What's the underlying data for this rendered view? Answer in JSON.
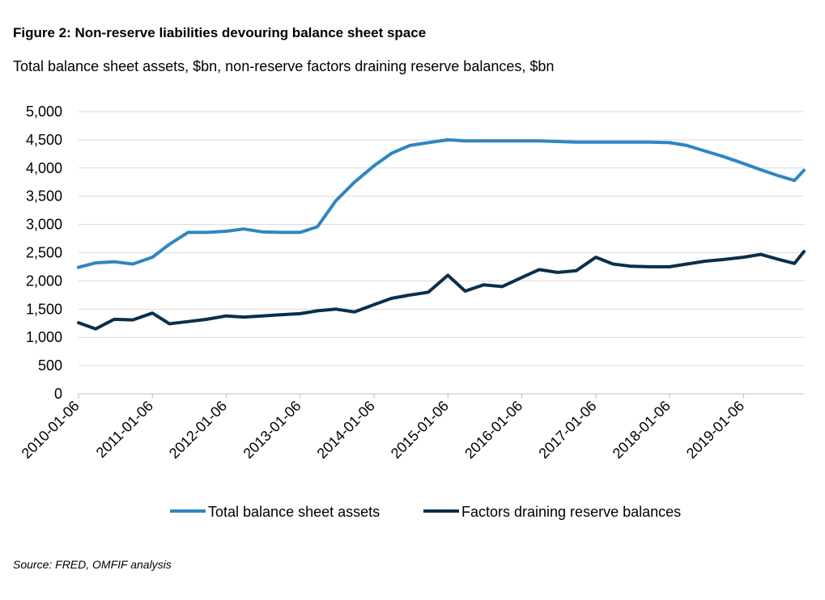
{
  "figure": {
    "title": "Figure 2: Non-reserve liabilities devouring balance sheet space",
    "subtitle": "Total balance sheet assets, $bn, non-reserve factors draining reserve balances, $bn",
    "source": "Source: FRED, OMFIF analysis"
  },
  "chart_data": {
    "type": "line",
    "title": "Figure 2: Non-reserve liabilities devouring balance sheet space",
    "xlabel": "",
    "ylabel": "",
    "ylim": [
      0,
      5000
    ],
    "y_ticks": [
      0,
      500,
      1000,
      1500,
      2000,
      2500,
      3000,
      3500,
      4000,
      4500,
      5000
    ],
    "y_tick_labels": [
      "0",
      "500",
      "1,000",
      "1,500",
      "2,000",
      "2,500",
      "3,000",
      "3,500",
      "4,000",
      "4,500",
      "5,000"
    ],
    "x_tick_labels": [
      "2010-01-06",
      "2011-01-06",
      "2012-01-06",
      "2013-01-06",
      "2014-01-06",
      "2015-01-06",
      "2016-01-06",
      "2017-01-06",
      "2018-01-06",
      "2019-01-06"
    ],
    "x_range": [
      "2010-01-06",
      "2019-11-01"
    ],
    "grid": "horizontal",
    "legend_position": "bottom",
    "x": [
      "2010-01-06",
      "2010-04-01",
      "2010-07-01",
      "2010-10-01",
      "2011-01-06",
      "2011-04-01",
      "2011-07-01",
      "2011-10-01",
      "2012-01-06",
      "2012-04-01",
      "2012-07-01",
      "2012-10-01",
      "2013-01-06",
      "2013-04-01",
      "2013-07-01",
      "2013-10-01",
      "2014-01-06",
      "2014-04-01",
      "2014-07-01",
      "2014-10-01",
      "2015-01-06",
      "2015-04-01",
      "2015-07-01",
      "2015-10-01",
      "2016-01-06",
      "2016-04-01",
      "2016-07-01",
      "2016-10-01",
      "2017-01-06",
      "2017-04-01",
      "2017-07-01",
      "2017-10-01",
      "2018-01-06",
      "2018-04-01",
      "2018-07-01",
      "2018-10-01",
      "2019-01-06",
      "2019-04-01",
      "2019-07-01",
      "2019-09-15",
      "2019-11-01"
    ],
    "series": [
      {
        "name": "Total balance sheet assets",
        "color": "#2E86C1",
        "values": [
          2240,
          2320,
          2340,
          2300,
          2420,
          2650,
          2860,
          2860,
          2880,
          2920,
          2870,
          2860,
          2860,
          2960,
          3420,
          3750,
          4040,
          4260,
          4400,
          4450,
          4500,
          4480,
          4480,
          4480,
          4480,
          4480,
          4470,
          4460,
          4460,
          4460,
          4460,
          4460,
          4450,
          4400,
          4300,
          4200,
          4080,
          3970,
          3860,
          3780,
          3960
        ]
      },
      {
        "name": "Factors draining reserve balances",
        "color": "#0B2F4A",
        "values": [
          1260,
          1150,
          1320,
          1310,
          1430,
          1240,
          1280,
          1320,
          1380,
          1360,
          1380,
          1400,
          1420,
          1470,
          1500,
          1450,
          1580,
          1690,
          1750,
          1800,
          2100,
          1820,
          1930,
          1900,
          2060,
          2200,
          2150,
          2180,
          2420,
          2300,
          2260,
          2250,
          2250,
          2300,
          2350,
          2380,
          2420,
          2470,
          2380,
          2310,
          2520
        ]
      }
    ]
  }
}
